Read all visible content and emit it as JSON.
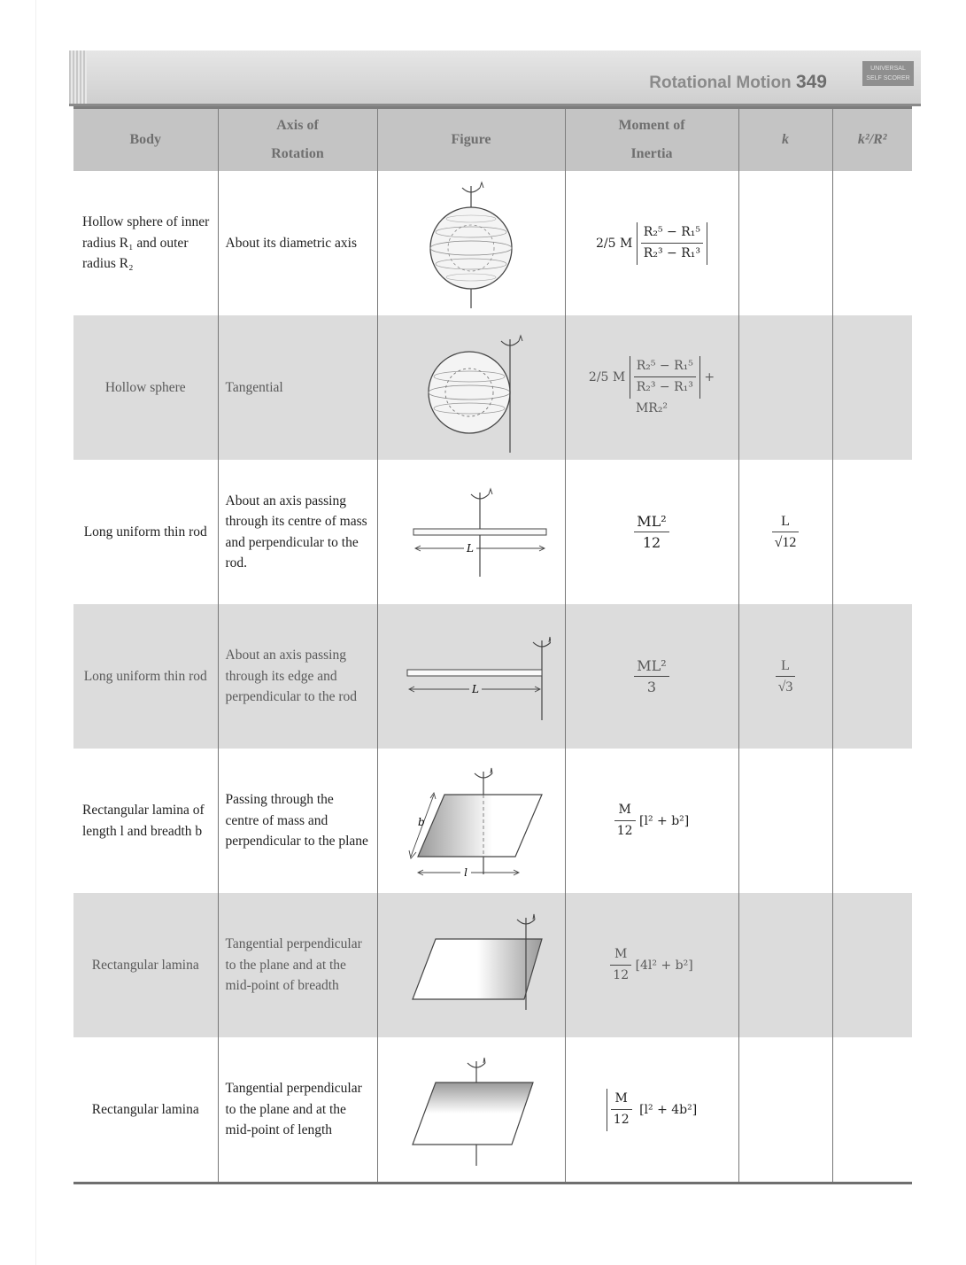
{
  "header": {
    "title": "Rotational Motion",
    "page_number": "349",
    "badge_line1": "UNIVERSAL",
    "badge_line2": "SELF SCORER"
  },
  "table": {
    "columns": {
      "body": "Body",
      "axis_line1": "Axis of",
      "axis_line2": "Rotation",
      "figure": "Figure",
      "moi_line1": "Moment of",
      "moi_line2": "Inertia",
      "k": "k",
      "k2r2": "k²/R²"
    },
    "rows": [
      {
        "body": "Hollow sphere of inner radius R₁ and outer radius R₂",
        "axis": "About its diametric axis",
        "moi_coef": "2/5 M",
        "moi_num": "R₂⁵ − R₁⁵",
        "moi_den": "R₂³ − R₁³",
        "moi_extra": "",
        "k_num": "",
        "k_den": "",
        "k2r2": ""
      },
      {
        "body": "Hollow sphere",
        "axis": "Tangential",
        "moi_coef": "2/5 M",
        "moi_num": "R₂⁵ − R₁⁵",
        "moi_den": "R₂³ − R₁³",
        "moi_extra": "+ MR₂²",
        "k_num": "",
        "k_den": "",
        "k2r2": ""
      },
      {
        "body": "Long uniform thin rod",
        "axis": "About an axis passing through its centre of mass and perpendicular to the rod.",
        "moi_coef": "",
        "moi_num": "ML²",
        "moi_den": "12",
        "moi_extra": "",
        "k_num": "L",
        "k_den": "√12",
        "k2r2": ""
      },
      {
        "body": "Long uniform thin rod",
        "axis": "About an axis passing through its edge and perpendicular to the rod",
        "moi_coef": "",
        "moi_num": "ML²",
        "moi_den": "3",
        "moi_extra": "",
        "k_num": "L",
        "k_den": "√3",
        "k2r2": ""
      },
      {
        "body": "Rectangular lamina of length l and breadth b",
        "axis": "Passing through the centre of mass and perpendicular to the plane",
        "moi_coef": "",
        "moi_num": "M",
        "moi_den": "12",
        "moi_extra": "[l² + b²]",
        "k_num": "",
        "k_den": "",
        "k2r2": ""
      },
      {
        "body": "Rectangular lamina",
        "axis": "Tangential perpendicular to the plane and at the mid-point of breadth",
        "moi_coef": "",
        "moi_num": "M",
        "moi_den": "12",
        "moi_extra": "[4l² + b²]",
        "k_num": "",
        "k_den": "",
        "k2r2": ""
      },
      {
        "body": "Rectangular lamina",
        "axis": "Tangential perpendicular to the plane and at the mid-point of length",
        "moi_coef": "",
        "moi_num": "M",
        "moi_den": "12",
        "moi_extra": "[l² + 4b²]",
        "k_num": "",
        "k_den": "",
        "k2r2": ""
      }
    ],
    "figure_labels": {
      "rod_length": "L",
      "lamina_length": "l",
      "lamina_breadth": "b"
    }
  }
}
